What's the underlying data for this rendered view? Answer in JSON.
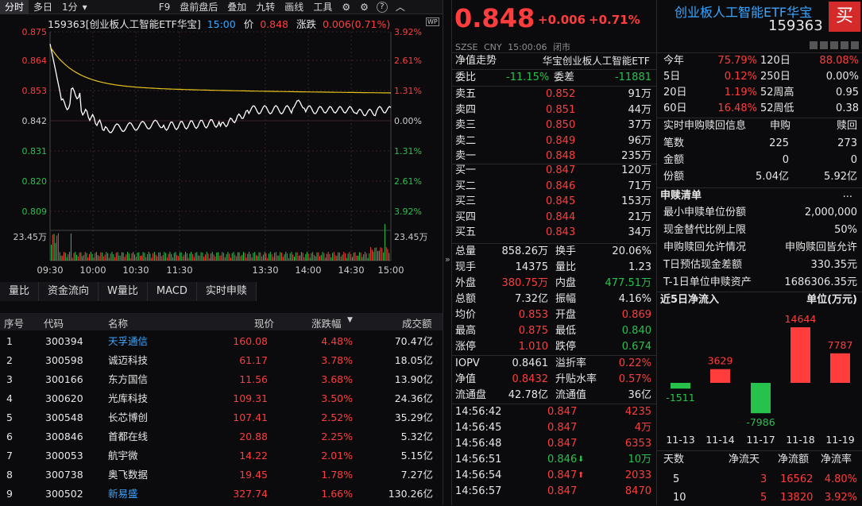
{
  "toolbar": {
    "items": [
      "分时",
      "多日",
      "1分",
      "▾",
      "F9",
      "盘前盘后",
      "叠加",
      "九转",
      "画线",
      "工具"
    ],
    "gear_icon": "⚙",
    "settings_icon": "⚙",
    "help_icon": "?",
    "collapse_icon": "︿"
  },
  "chart": {
    "info_code": "159363[创业板人工智能ETF华宝]",
    "info_time": "15:00",
    "info_price_label": "价",
    "info_price": "0.848",
    "info_change_label": "涨跌",
    "info_change": "0.006(0.71%)",
    "wp_badge": "WP",
    "left_ticks": [
      "0.875",
      "0.864",
      "0.853",
      "0.842",
      "0.831",
      "0.820",
      "0.809"
    ],
    "right_ticks": [
      "3.92%",
      "2.61%",
      "1.31%",
      "0.00%",
      "1.31%",
      "2.61%",
      "3.92%"
    ],
    "volume_label_left": "23.45万",
    "volume_label_right": "23.45万",
    "time_ticks": [
      "09:30",
      "10:00",
      "10:30",
      "11:30",
      "13:30",
      "14:00",
      "14:30",
      "15:00"
    ],
    "colors": {
      "price_line": "#ffffff",
      "avg_line": "#e6c21c",
      "grid": "#3a2222",
      "up": "#ff3d3d",
      "down": "#27c24c"
    }
  },
  "subtabs": [
    "量比",
    "资金流向",
    "W量比",
    "MACD",
    "实时申赎"
  ],
  "table": {
    "headers": {
      "seq": "序号",
      "code": "代码",
      "name": "名称",
      "price": "现价",
      "change": "涨跌幅",
      "sort_icon": "▼",
      "volume": "成交额"
    },
    "rows": [
      {
        "seq": "1",
        "code": "300394",
        "name": "天孚通信",
        "price": "160.08",
        "change": "4.48%",
        "volume": "70.47亿",
        "name_color": "cyan"
      },
      {
        "seq": "2",
        "code": "300598",
        "name": "诚迈科技",
        "price": "61.17",
        "change": "3.78%",
        "volume": "18.05亿",
        "name_color": "white"
      },
      {
        "seq": "3",
        "code": "300166",
        "name": "东方国信",
        "price": "11.56",
        "change": "3.68%",
        "volume": "13.90亿",
        "name_color": "white"
      },
      {
        "seq": "4",
        "code": "300620",
        "name": "光库科技",
        "price": "109.31",
        "change": "3.50%",
        "volume": "24.36亿",
        "name_color": "white"
      },
      {
        "seq": "5",
        "code": "300548",
        "name": "长芯博创",
        "price": "107.41",
        "change": "2.52%",
        "volume": "35.29亿",
        "name_color": "white"
      },
      {
        "seq": "6",
        "code": "300846",
        "name": "首都在线",
        "price": "20.88",
        "change": "2.25%",
        "volume": "5.32亿",
        "name_color": "white"
      },
      {
        "seq": "7",
        "code": "300053",
        "name": "航宇微",
        "price": "14.22",
        "change": "2.01%",
        "volume": "5.15亿",
        "name_color": "white"
      },
      {
        "seq": "8",
        "code": "300738",
        "name": "奥飞数据",
        "price": "19.45",
        "change": "1.78%",
        "volume": "7.27亿",
        "name_color": "white"
      },
      {
        "seq": "9",
        "code": "300502",
        "name": "新易盛",
        "price": "327.74",
        "change": "1.66%",
        "volume": "130.26亿",
        "name_color": "cyan"
      }
    ]
  },
  "divider_icon": "»",
  "quote": {
    "price": "0.848",
    "change": "+0.006",
    "change_pct": "+0.71%",
    "name": "创业板人工智能ETF华宝",
    "code": "159363",
    "buy_button": "买",
    "market": "SZSE",
    "currency": "CNY",
    "time": "15:00:06",
    "status": "闭市",
    "nav_trend": "净值走势",
    "nav_trend_name": "华宝创业板人工智能ETF",
    "weibi_label": "委比",
    "weibi": "-11.15%",
    "weicha_label": "委差",
    "weicha": "-11881",
    "asks": [
      {
        "label": "卖五",
        "price": "0.852",
        "vol": "91万"
      },
      {
        "label": "卖四",
        "price": "0.851",
        "vol": "44万"
      },
      {
        "label": "卖三",
        "price": "0.850",
        "vol": "37万"
      },
      {
        "label": "卖二",
        "price": "0.849",
        "vol": "96万"
      },
      {
        "label": "卖一",
        "price": "0.848",
        "vol": "235万"
      }
    ],
    "bids": [
      {
        "label": "买一",
        "price": "0.847",
        "vol": "120万"
      },
      {
        "label": "买二",
        "price": "0.846",
        "vol": "71万"
      },
      {
        "label": "买三",
        "price": "0.845",
        "vol": "153万"
      },
      {
        "label": "买四",
        "price": "0.844",
        "vol": "21万"
      },
      {
        "label": "买五",
        "price": "0.843",
        "vol": "34万"
      }
    ],
    "stats": [
      {
        "l1": "总量",
        "v1": "858.26万",
        "c1": "white",
        "l2": "换手",
        "v2": "20.06%",
        "c2": "white"
      },
      {
        "l1": "现手",
        "v1": "14375",
        "c1": "white",
        "l2": "量比",
        "v2": "1.23",
        "c2": "white"
      },
      {
        "l1": "外盘",
        "v1": "380.75万",
        "c1": "red",
        "l2": "内盘",
        "v2": "477.51万",
        "c2": "green"
      },
      {
        "l1": "总额",
        "v1": "7.32亿",
        "c1": "white",
        "l2": "振幅",
        "v2": "4.16%",
        "c2": "white"
      },
      {
        "l1": "均价",
        "v1": "0.853",
        "c1": "red",
        "l2": "开盘",
        "v2": "0.869",
        "c2": "red"
      },
      {
        "l1": "最高",
        "v1": "0.875",
        "c1": "red",
        "l2": "最低",
        "v2": "0.840",
        "c2": "green"
      },
      {
        "l1": "涨停",
        "v1": "1.010",
        "c1": "red",
        "l2": "跌停",
        "v2": "0.674",
        "c2": "green"
      }
    ],
    "stats2": [
      {
        "l1": "IOPV",
        "v1": "0.8461",
        "c1": "white",
        "l2": "溢折率",
        "v2": "0.22%",
        "c2": "red"
      },
      {
        "l1": "净值",
        "v1": "0.8432",
        "c1": "red",
        "l2": "升贴水率",
        "v2": "0.57%",
        "c2": "red"
      },
      {
        "l1": "流通盘",
        "v1": "42.78亿",
        "c1": "white",
        "l2": "流通值",
        "v2": "36亿",
        "c2": "white"
      }
    ],
    "ticks": [
      {
        "time": "14:56:42",
        "price": "0.847",
        "arrow": "",
        "vol": "4235",
        "vol_color": "red"
      },
      {
        "time": "14:56:45",
        "price": "0.847",
        "arrow": "",
        "vol": "4万",
        "vol_color": "red"
      },
      {
        "time": "14:56:48",
        "price": "0.847",
        "arrow": "",
        "vol": "6353",
        "vol_color": "red"
      },
      {
        "time": "14:56:51",
        "price": "0.846",
        "arrow": "⬇",
        "vol": "10万",
        "vol_color": "green"
      },
      {
        "time": "14:56:54",
        "price": "0.847",
        "arrow": "⬆",
        "vol": "2033",
        "vol_color": "red"
      },
      {
        "time": "14:56:57",
        "price": "0.847",
        "arrow": "",
        "vol": "8470",
        "vol_color": "red"
      }
    ]
  },
  "perf": [
    {
      "l1": "今年",
      "v1": "75.79%",
      "c1": "red",
      "l2": "120日",
      "v2": "88.08%",
      "c2": "red"
    },
    {
      "l1": "5日",
      "v1": "0.12%",
      "c1": "red",
      "l2": "250日",
      "v2": "0.00%",
      "c2": "white"
    },
    {
      "l1": "20日",
      "v1": "1.19%",
      "c1": "red",
      "l2": "52周高",
      "v2": "0.95",
      "c2": "white"
    },
    {
      "l1": "60日",
      "v1": "16.48%",
      "c1": "red",
      "l2": "52周低",
      "v2": "0.38",
      "c2": "white"
    }
  ],
  "realtime": {
    "title": "实时申购赎回信息",
    "col1": "申购",
    "col2": "赎回",
    "rows": [
      {
        "label": "笔数",
        "v1": "225",
        "v2": "273"
      },
      {
        "label": "金额",
        "v1": "0",
        "v2": "0"
      },
      {
        "label": "份额",
        "v1": "5.04亿",
        "v2": "5.92亿"
      }
    ]
  },
  "redeem": {
    "title": "申赎清单",
    "more": "...",
    "rows": [
      {
        "label": "最小申赎单位份额",
        "value": "2,000,000"
      },
      {
        "label": "现金替代比例上限",
        "value": "50%"
      },
      {
        "label": "申购赎回允许情况",
        "value": "申购赎回皆允许"
      },
      {
        "label": "T日预估现金差额",
        "value": "330.35元"
      },
      {
        "label": "T-1日单位申赎资产",
        "value": "1686306.35元"
      }
    ]
  },
  "inflow": {
    "title": "近5日净流入",
    "unit": "单位(万元)",
    "chart_data": {
      "type": "bar",
      "categories": [
        "11-13",
        "11-14",
        "11-17",
        "11-18",
        "11-19"
      ],
      "values": [
        -1511,
        3629,
        -7986,
        14644,
        7787
      ]
    },
    "table_head": [
      "天数",
      "净流天",
      "净流额",
      "净流率"
    ],
    "table_rows": [
      {
        "days": "5",
        "net_days": "3",
        "amount": "16562",
        "rate": "4.80%"
      },
      {
        "days": "10",
        "net_days": "5",
        "amount": "13820",
        "rate": "3.92%"
      }
    ]
  }
}
